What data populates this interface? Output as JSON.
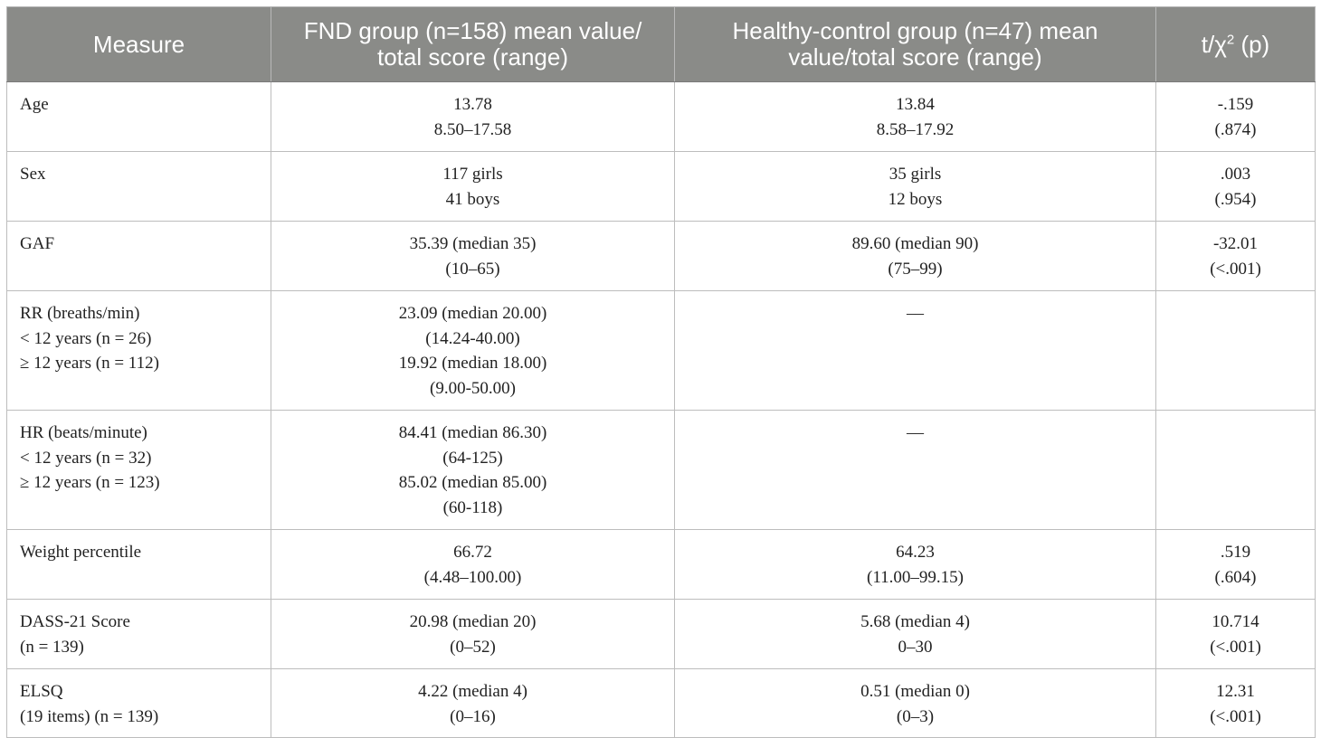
{
  "table": {
    "headers": {
      "measure": "Measure",
      "fnd_line1": "FND group (n=158) mean value/",
      "fnd_line2": "total score (range)",
      "hc_line1": "Healthy-control group (n=47) mean",
      "hc_line2": "value/total score (range)",
      "stat_base": "t/χ",
      "stat_sup": "2",
      "stat_tail": " (p)"
    },
    "rows": [
      {
        "measure": [
          "Age"
        ],
        "fnd": [
          "13.78",
          "8.50–17.58"
        ],
        "hc": [
          "13.84",
          "8.58–17.92"
        ],
        "stat": [
          "-.159",
          "(.874)"
        ]
      },
      {
        "measure": [
          "Sex"
        ],
        "fnd": [
          "117 girls",
          "41 boys"
        ],
        "hc": [
          "35 girls",
          "12 boys"
        ],
        "stat": [
          ".003",
          "(.954)"
        ]
      },
      {
        "measure": [
          "GAF"
        ],
        "fnd": [
          "35.39 (median 35)",
          "(10–65)"
        ],
        "hc": [
          "89.60 (median 90)",
          "(75–99)"
        ],
        "stat": [
          "-32.01",
          "(<.001)"
        ]
      },
      {
        "measure": [
          "RR (breaths/min)",
          "< 12 years (n = 26)",
          "≥ 12 years (n = 112)"
        ],
        "fnd": [
          "23.09 (median 20.00)",
          "(14.24-40.00)",
          "19.92 (median 18.00)",
          "(9.00-50.00)"
        ],
        "hc": [
          "––"
        ],
        "stat": []
      },
      {
        "measure": [
          "HR (beats/minute)",
          "< 12 years (n = 32)",
          "≥ 12 years (n = 123)"
        ],
        "fnd": [
          "84.41 (median 86.30)",
          "(64-125)",
          "85.02 (median 85.00)",
          "(60-118)"
        ],
        "hc": [
          "––"
        ],
        "stat": []
      },
      {
        "measure": [
          "Weight percentile"
        ],
        "fnd": [
          "66.72",
          "(4.48–100.00)"
        ],
        "hc": [
          "64.23",
          "(11.00–99.15)"
        ],
        "stat": [
          ".519",
          "(.604)"
        ]
      },
      {
        "measure": [
          "DASS-21 Score",
          "(n = 139)"
        ],
        "fnd": [
          "20.98 (median 20)",
          "(0–52)"
        ],
        "hc": [
          "5.68 (median 4)",
          "0–30"
        ],
        "stat": [
          "10.714",
          "(<.001)"
        ]
      },
      {
        "measure": [
          "ELSQ",
          "(19 items) (n = 139)"
        ],
        "fnd": [
          "4.22 (median 4)",
          "(0–16)"
        ],
        "hc": [
          "0.51 (median 0)",
          "(0–3)"
        ],
        "stat": [
          "12.31",
          "(<.001)"
        ]
      }
    ]
  }
}
